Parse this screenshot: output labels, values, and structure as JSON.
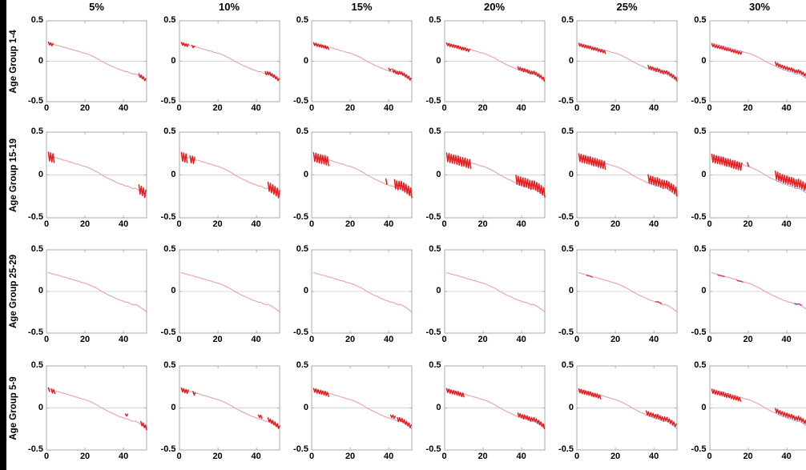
{
  "chart_data": {
    "type": "line",
    "title": "",
    "xlabel": "",
    "ylabel": "",
    "col_labels": [
      "5%",
      "10%",
      "15%",
      "20%",
      "25%",
      "30%"
    ],
    "row_labels": [
      "Age Group 1-4",
      "Age Group 15-19",
      "Age Group 25-29",
      "Age Group 5-9"
    ],
    "x_ticks": [
      "0",
      "20",
      "40"
    ],
    "x_tick_values": [
      0,
      20,
      40
    ],
    "y_ticks": [
      "0.5",
      "0",
      "-0.5"
    ],
    "y_tick_values": [
      0.5,
      0,
      -0.5
    ],
    "x_range": [
      0,
      52
    ],
    "y_range": [
      -0.5,
      0.5
    ],
    "grid": "zero-line-only",
    "legend": "none",
    "colors": {
      "baseline_line": "#9ba3e6",
      "thin_line": "#f4a2a2",
      "band_line": "#e61e1e",
      "axis": "#a8a8a8",
      "zero_line": "#d8d8d8",
      "text": "#000000",
      "edge_bar": "#000000",
      "background": "#ffffff"
    },
    "baseline_weekly": [
      0.225,
      0.22,
      0.21,
      0.205,
      0.2,
      0.193,
      0.19,
      0.178,
      0.172,
      0.17,
      0.16,
      0.15,
      0.148,
      0.14,
      0.13,
      0.128,
      0.12,
      0.11,
      0.105,
      0.1,
      0.092,
      0.083,
      0.072,
      0.06,
      0.05,
      0.038,
      0.025,
      0.01,
      -0.005,
      -0.015,
      -0.028,
      -0.04,
      -0.052,
      -0.06,
      -0.072,
      -0.085,
      -0.092,
      -0.105,
      -0.11,
      -0.118,
      -0.13,
      -0.128,
      -0.14,
      -0.152,
      -0.16,
      -0.155,
      -0.165,
      -0.18,
      -0.195,
      -0.21,
      -0.228,
      -0.25
    ],
    "panels": [
      {
        "age_group": "Age Group 1-4",
        "scenario": "5%",
        "segments": [
          {
            "from": 1,
            "to": 3.5,
            "amp": 0.016,
            "off": -0.005
          },
          {
            "from": 48,
            "to": 52,
            "amp": 0.018,
            "off": 0.008
          }
        ]
      },
      {
        "age_group": "Age Group 1-4",
        "scenario": "10%",
        "segments": [
          {
            "from": 1,
            "to": 5,
            "amp": 0.016,
            "off": -0.008
          },
          {
            "from": 6.5,
            "to": 8,
            "amp": 0.013,
            "off": -0.008
          },
          {
            "from": 44.5,
            "to": 52,
            "amp": 0.018,
            "off": 0.01
          }
        ]
      },
      {
        "age_group": "Age Group 1-4",
        "scenario": "15%",
        "segments": [
          {
            "from": 1,
            "to": 9,
            "amp": 0.016,
            "off": -0.012
          },
          {
            "from": 40,
            "to": 41.5,
            "amp": 0.012,
            "off": 0.02
          },
          {
            "from": 42,
            "to": 52,
            "amp": 0.018,
            "off": 0.014
          }
        ]
      },
      {
        "age_group": "Age Group 1-4",
        "scenario": "20%",
        "segments": [
          {
            "from": 1,
            "to": 13,
            "amp": 0.016,
            "off": -0.014
          },
          {
            "from": 38,
            "to": 52,
            "amp": 0.018,
            "off": 0.018
          }
        ]
      },
      {
        "age_group": "Age Group 1-4",
        "scenario": "25%",
        "segments": [
          {
            "from": 1,
            "to": 15,
            "amp": 0.016,
            "off": -0.02
          },
          {
            "from": 37,
            "to": 52,
            "amp": 0.018,
            "off": 0.024
          }
        ]
      },
      {
        "age_group": "Age Group 1-4",
        "scenario": "30%",
        "segments": [
          {
            "from": 1,
            "to": 17,
            "amp": 0.016,
            "off": -0.026
          },
          {
            "from": 34,
            "to": 52,
            "amp": 0.018,
            "off": 0.032
          }
        ]
      },
      {
        "age_group": "Age Group 15-19",
        "scenario": "5%",
        "segments": [
          {
            "from": 1,
            "to": 4,
            "amp": 0.05,
            "off": -0.01
          },
          {
            "from": 48,
            "to": 52,
            "amp": 0.05,
            "off": 0.015
          }
        ]
      },
      {
        "age_group": "Age Group 15-19",
        "scenario": "10%",
        "segments": [
          {
            "from": 1,
            "to": 4.5,
            "amp": 0.05,
            "off": -0.012
          },
          {
            "from": 5.5,
            "to": 8,
            "amp": 0.04,
            "off": -0.012
          },
          {
            "from": 46,
            "to": 52,
            "amp": 0.05,
            "off": 0.02
          }
        ]
      },
      {
        "age_group": "Age Group 15-19",
        "scenario": "15%",
        "segments": [
          {
            "from": 1,
            "to": 9,
            "amp": 0.05,
            "off": -0.015
          },
          {
            "from": 38.5,
            "to": 39.5,
            "amp": 0.03,
            "off": 0.03
          },
          {
            "from": 43,
            "to": 52,
            "amp": 0.05,
            "off": 0.035
          }
        ]
      },
      {
        "age_group": "Age Group 15-19",
        "scenario": "20%",
        "segments": [
          {
            "from": 1,
            "to": 14,
            "amp": 0.05,
            "off": -0.018
          },
          {
            "from": 37,
            "to": 52,
            "amp": 0.05,
            "off": 0.04
          }
        ]
      },
      {
        "age_group": "Age Group 15-19",
        "scenario": "25%",
        "segments": [
          {
            "from": 1,
            "to": 15,
            "amp": 0.045,
            "off": -0.022
          },
          {
            "from": 37,
            "to": 52,
            "amp": 0.045,
            "off": 0.05
          }
        ]
      },
      {
        "age_group": "Age Group 15-19",
        "scenario": "30%",
        "segments": [
          {
            "from": 1,
            "to": 17,
            "amp": 0.045,
            "off": -0.028
          },
          {
            "from": 19.5,
            "to": 20.5,
            "amp": 0.02,
            "off": 0.02
          },
          {
            "from": 34,
            "to": 52,
            "amp": 0.045,
            "off": 0.06
          }
        ]
      },
      {
        "age_group": "Age Group 25-29",
        "scenario": "5%",
        "segments": []
      },
      {
        "age_group": "Age Group 25-29",
        "scenario": "10%",
        "segments": []
      },
      {
        "age_group": "Age Group 25-29",
        "scenario": "15%",
        "segments": []
      },
      {
        "age_group": "Age Group 25-29",
        "scenario": "20%",
        "segments": []
      },
      {
        "age_group": "Age Group 25-29",
        "scenario": "25%",
        "segments": [
          {
            "from": 5,
            "to": 8,
            "amp": 0.004,
            "off": -0.006,
            "w": 1
          },
          {
            "from": 41,
            "to": 44,
            "amp": 0.004,
            "off": 0.006,
            "w": 1
          }
        ]
      },
      {
        "age_group": "Age Group 25-29",
        "scenario": "30%",
        "segments": [
          {
            "from": 4,
            "to": 8,
            "amp": 0.004,
            "off": -0.008,
            "w": 1
          },
          {
            "from": 14,
            "to": 17,
            "amp": 0.003,
            "off": -0.006,
            "w": 1
          },
          {
            "from": 44,
            "to": 48,
            "amp": 0.004,
            "off": 0.008,
            "w": 1
          }
        ]
      },
      {
        "age_group": "Age Group 5-9",
        "scenario": "5%",
        "segments": [
          {
            "from": 1,
            "to": 2,
            "amp": 0.02,
            "off": -0.006
          },
          {
            "from": 2.5,
            "to": 4.5,
            "amp": 0.022,
            "off": -0.01
          },
          {
            "from": 41,
            "to": 42.5,
            "amp": 0.012,
            "off": 0.045
          },
          {
            "from": 49,
            "to": 52,
            "amp": 0.022,
            "off": 0.012
          }
        ]
      },
      {
        "age_group": "Age Group 5-9",
        "scenario": "10%",
        "segments": [
          {
            "from": 1,
            "to": 5,
            "amp": 0.022,
            "off": -0.01
          },
          {
            "from": 7,
            "to": 8.5,
            "amp": 0.018,
            "off": -0.012
          },
          {
            "from": 41,
            "to": 43,
            "amp": 0.015,
            "off": 0.03
          },
          {
            "from": 46,
            "to": 52,
            "amp": 0.022,
            "off": 0.015
          }
        ]
      },
      {
        "age_group": "Age Group 5-9",
        "scenario": "15%",
        "segments": [
          {
            "from": 1,
            "to": 9,
            "amp": 0.022,
            "off": -0.014
          },
          {
            "from": 41,
            "to": 43.5,
            "amp": 0.015,
            "off": 0.03
          },
          {
            "from": 44.5,
            "to": 52,
            "amp": 0.022,
            "off": 0.018
          }
        ]
      },
      {
        "age_group": "Age Group 5-9",
        "scenario": "20%",
        "segments": [
          {
            "from": 1,
            "to": 10.5,
            "amp": 0.022,
            "off": -0.016
          },
          {
            "from": 38,
            "to": 52,
            "amp": 0.022,
            "off": 0.022
          }
        ]
      },
      {
        "age_group": "Age Group 5-9",
        "scenario": "25%",
        "segments": [
          {
            "from": 1,
            "to": 12.5,
            "amp": 0.022,
            "off": -0.02
          },
          {
            "from": 36,
            "to": 52,
            "amp": 0.022,
            "off": 0.028
          }
        ]
      },
      {
        "age_group": "Age Group 5-9",
        "scenario": "30%",
        "segments": [
          {
            "from": 1,
            "to": 16,
            "amp": 0.022,
            "off": -0.026
          },
          {
            "from": 34,
            "to": 52,
            "amp": 0.022,
            "off": 0.034
          }
        ]
      }
    ]
  }
}
